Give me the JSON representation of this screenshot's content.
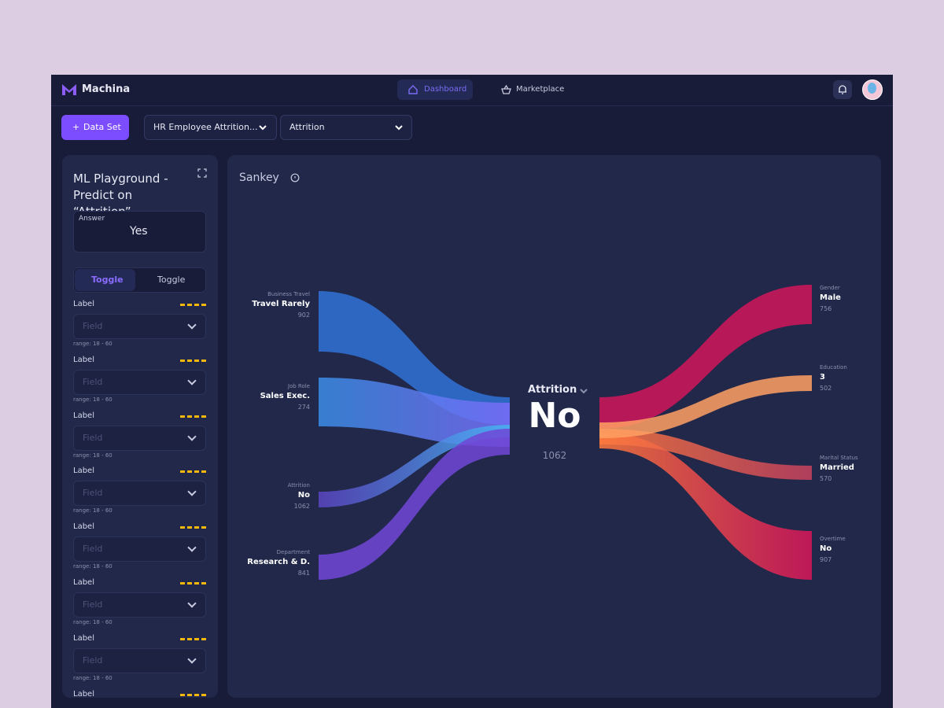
{
  "app": {
    "brand": "Machina"
  },
  "nav": [
    "Dashboard",
    "Marketplace"
  ],
  "toolbar": {
    "button": "Data Set",
    "dataset": "HR Employee Attrition...",
    "target": "Attrition"
  },
  "playground": {
    "title": "ML Playground - Predict on “Attrition”",
    "answer_label": "Answer",
    "answer": "Yes",
    "toggles": [
      "Toggle",
      "Toggle"
    ],
    "fields": [
      {
        "label": "Label",
        "placeholder": "Field",
        "hint": "range: 18 - 60"
      },
      {
        "label": "Label",
        "placeholder": "Field",
        "hint": "range: 18 - 60"
      },
      {
        "label": "Label",
        "placeholder": "Field",
        "hint": "range: 18 - 60"
      },
      {
        "label": "Label",
        "placeholder": "Field",
        "hint": "range: 18 - 60"
      },
      {
        "label": "Label",
        "placeholder": "Field",
        "hint": "range: 18 - 60"
      },
      {
        "label": "Label",
        "placeholder": "Field",
        "hint": "range: 18 - 60"
      },
      {
        "label": "Label",
        "placeholder": "Field",
        "hint": "range: 18 - 60"
      }
    ],
    "last_label": "Label"
  },
  "sankey": {
    "title": "Sankey",
    "center": {
      "label": "Attrition",
      "value": "No",
      "count": 1062
    },
    "left": [
      {
        "category": "Business Travel",
        "name": "Travel Rarely",
        "count": 902
      },
      {
        "category": "Job Role",
        "name": "Sales Exec.",
        "count": 274
      },
      {
        "category": "Attrition",
        "name": "No",
        "count": 1062
      },
      {
        "category": "Department",
        "name": "Research & D.",
        "count": 841
      }
    ],
    "right": [
      {
        "category": "Gender",
        "name": "Male",
        "count": 756
      },
      {
        "category": "Education",
        "name": "3",
        "count": 502
      },
      {
        "category": "Marital Status",
        "name": "Married",
        "count": 570
      },
      {
        "category": "Overtime",
        "name": "No",
        "count": 907
      }
    ]
  }
}
